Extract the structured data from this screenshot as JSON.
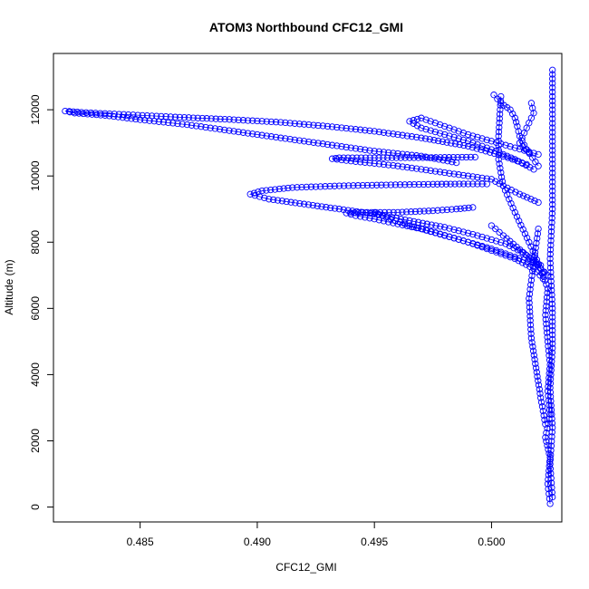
{
  "chart_data": {
    "type": "scatter",
    "title": "ATOM3 Northbound CFC12_GMI",
    "xlabel": "CFC12_GMI",
    "ylabel": "Altitude (m)",
    "xlim": [
      0.4813,
      0.503
    ],
    "ylim": [
      -450,
      13700
    ],
    "x_ticks": [
      0.485,
      0.49,
      0.495,
      0.5
    ],
    "x_tick_labels": [
      "0.485",
      "0.490",
      "0.495",
      "0.500"
    ],
    "y_ticks": [
      0,
      2000,
      4000,
      6000,
      8000,
      10000,
      12000
    ],
    "y_tick_labels": [
      "0",
      "2000",
      "4000",
      "6000",
      "8000",
      "10000",
      "12000"
    ],
    "marker": "open-circle",
    "color": "#0000ff",
    "connected_with_line": true,
    "grid": false,
    "series": [
      {
        "x": [
          0.5025,
          0.5024,
          0.5025,
          0.5023,
          0.5025,
          0.5024,
          0.5025,
          0.5024,
          0.5023,
          0.5024,
          0.5021,
          0.5016,
          0.501,
          0.5005,
          0.5003,
          0.5003,
          0.5004
        ],
        "y": [
          100,
          700,
          1500,
          2100,
          2800,
          3500,
          4300,
          5000,
          5800,
          6600,
          7200,
          8000,
          8900,
          9700,
          10500,
          11200,
          12400
        ]
      },
      {
        "x": [
          0.5026,
          0.5025,
          0.5026,
          0.5025,
          0.5026,
          0.5026,
          0.5025,
          0.5026,
          0.5026,
          0.5026,
          0.5026
        ],
        "y": [
          300,
          1300,
          2400,
          3600,
          4800,
          6000,
          7500,
          9000,
          10500,
          12000,
          13200
        ]
      },
      {
        "x": [
          0.5023,
          0.5021,
          0.5019,
          0.5017,
          0.5016,
          0.5018,
          0.502
        ],
        "y": [
          2500,
          3300,
          4200,
          5100,
          6300,
          7400,
          8400
        ]
      },
      {
        "x": [
          0.5022,
          0.5019,
          0.5013,
          0.5006,
          0.4994,
          0.498,
          0.4965,
          0.495,
          0.4935,
          0.492,
          0.4905,
          0.4897,
          0.4902,
          0.4915,
          0.4935,
          0.4955,
          0.4975,
          0.499,
          0.4998
        ],
        "y": [
          7100,
          7400,
          7700,
          7950,
          8200,
          8450,
          8650,
          8850,
          9000,
          9150,
          9300,
          9450,
          9550,
          9650,
          9700,
          9730,
          9750,
          9760,
          9760
        ]
      },
      {
        "x": [
          0.5021,
          0.501,
          0.5,
          0.499,
          0.498,
          0.497,
          0.496,
          0.495,
          0.4942,
          0.4938,
          0.4945,
          0.496,
          0.4975,
          0.4985,
          0.4992
        ],
        "y": [
          7300,
          7550,
          7800,
          8000,
          8200,
          8400,
          8550,
          8700,
          8800,
          8880,
          8900,
          8900,
          8950,
          9000,
          9050
        ]
      },
      {
        "x": [
          0.5022,
          0.5018,
          0.501,
          0.5,
          0.499,
          0.4978,
          0.4965,
          0.4955,
          0.495
        ],
        "y": [
          6900,
          7200,
          7500,
          7750,
          8000,
          8250,
          8500,
          8750,
          8900
        ]
      },
      {
        "x": [
          0.5024,
          0.5015,
          0.5005,
          0.5
        ],
        "y": [
          7000,
          7600,
          8200,
          8500
        ]
      },
      {
        "x": [
          0.502,
          0.5012,
          0.5005,
          0.5,
          0.499,
          0.498,
          0.497,
          0.496,
          0.495,
          0.494,
          0.4932,
          0.4935,
          0.495,
          0.4965,
          0.498,
          0.4993
        ],
        "y": [
          9200,
          9450,
          9700,
          9900,
          10000,
          10100,
          10200,
          10300,
          10380,
          10450,
          10520,
          10550,
          10550,
          10550,
          10560,
          10570
        ]
      },
      {
        "x": [
          0.5018,
          0.501,
          0.5,
          0.499,
          0.498,
          0.497,
          0.4965,
          0.497,
          0.498,
          0.499,
          0.5,
          0.501,
          0.502
        ],
        "y": [
          10200,
          10500,
          10800,
          11050,
          11250,
          11450,
          11650,
          11750,
          11500,
          11250,
          11050,
          10850,
          10650
        ]
      },
      {
        "x": [
          0.4985,
          0.497,
          0.495,
          0.493,
          0.491,
          0.489,
          0.487,
          0.485,
          0.4835,
          0.4822,
          0.4818,
          0.4825,
          0.4845,
          0.4865,
          0.489,
          0.491,
          0.493,
          0.495,
          0.497,
          0.499,
          0.5005,
          0.5015
        ],
        "y": [
          10400,
          10600,
          10750,
          10950,
          11150,
          11350,
          11550,
          11700,
          11830,
          11900,
          11960,
          11920,
          11850,
          11780,
          11700,
          11620,
          11500,
          11350,
          11150,
          10900,
          10600,
          10350
        ]
      },
      {
        "x": [
          0.5001,
          0.5004,
          0.5008,
          0.501,
          0.5011,
          0.5012,
          0.5015,
          0.502
        ],
        "y": [
          12450,
          12200,
          12000,
          11750,
          11500,
          11200,
          10800,
          10300
        ]
      },
      {
        "x": [
          0.5017,
          0.5018,
          0.5016,
          0.5014,
          0.5012,
          0.5016
        ],
        "y": [
          12200,
          11900,
          11600,
          11300,
          11000,
          10700
        ]
      }
    ]
  }
}
